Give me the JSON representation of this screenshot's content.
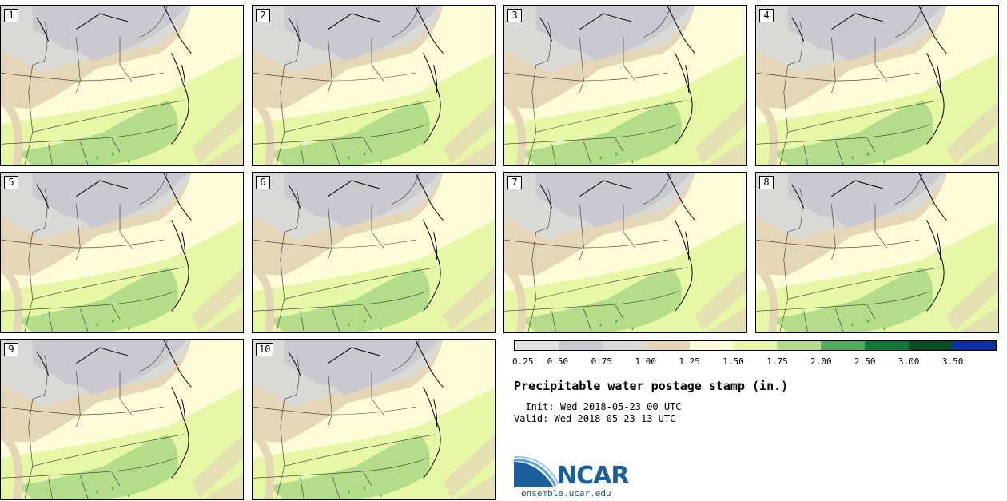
{
  "figure": {
    "title": "Precipitable water postage stamp (in.)",
    "init_label": "Init:",
    "init_value": "Wed 2018-05-23 00 UTC",
    "valid_label": "Valid:",
    "valid_value": "Wed 2018-05-23 13 UTC",
    "logo_text": "NCAR",
    "website": "ensemble.ucar.edu"
  },
  "members": [
    "1",
    "2",
    "3",
    "4",
    "5",
    "6",
    "7",
    "8",
    "9",
    "10"
  ],
  "legend": {
    "colors": [
      "#e3e3e3",
      "#c9c9cf",
      "#d9d9d6",
      "#e4d6b6",
      "#fdfbd8",
      "#e6f8a6",
      "#b3dd8a",
      "#4eac5e",
      "#0b7a36",
      "#044c22",
      "#0a2fa8"
    ],
    "ticks": [
      "0.25",
      "0.50",
      "0.75",
      "1.00",
      "1.25",
      "1.50",
      "1.75",
      "2.00",
      "2.50",
      "3.00",
      "3.50"
    ]
  }
}
